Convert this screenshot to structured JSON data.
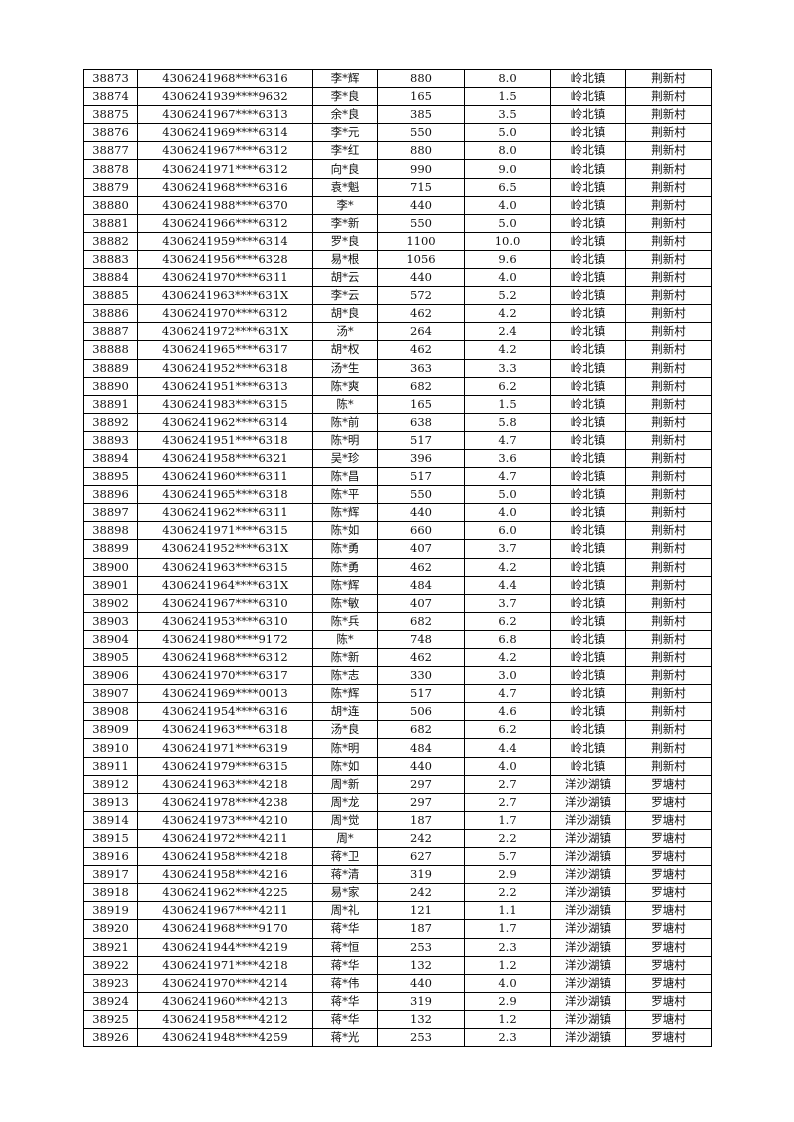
{
  "rows": [
    [
      "38873",
      "4306241968****6316",
      "李*辉",
      "880",
      "8.0",
      "岭北镇",
      "荆新村"
    ],
    [
      "38874",
      "4306241939****9632",
      "李*良",
      "165",
      "1.5",
      "岭北镇",
      "荆新村"
    ],
    [
      "38875",
      "4306241967****6313",
      "余*良",
      "385",
      "3.5",
      "岭北镇",
      "荆新村"
    ],
    [
      "38876",
      "4306241969****6314",
      "李*元",
      "550",
      "5.0",
      "岭北镇",
      "荆新村"
    ],
    [
      "38877",
      "4306241967****6312",
      "李*红",
      "880",
      "8.0",
      "岭北镇",
      "荆新村"
    ],
    [
      "38878",
      "4306241971****6312",
      "向*良",
      "990",
      "9.0",
      "岭北镇",
      "荆新村"
    ],
    [
      "38879",
      "4306241968****6316",
      "袁*魁",
      "715",
      "6.5",
      "岭北镇",
      "荆新村"
    ],
    [
      "38880",
      "4306241988****6370",
      "李*",
      "440",
      "4.0",
      "岭北镇",
      "荆新村"
    ],
    [
      "38881",
      "4306241966****6312",
      "李*新",
      "550",
      "5.0",
      "岭北镇",
      "荆新村"
    ],
    [
      "38882",
      "4306241959****6314",
      "罗*良",
      "1100",
      "10.0",
      "岭北镇",
      "荆新村"
    ],
    [
      "38883",
      "4306241956****6328",
      "易*根",
      "1056",
      "9.6",
      "岭北镇",
      "荆新村"
    ],
    [
      "38884",
      "4306241970****6311",
      "胡*云",
      "440",
      "4.0",
      "岭北镇",
      "荆新村"
    ],
    [
      "38885",
      "4306241963****631X",
      "李*云",
      "572",
      "5.2",
      "岭北镇",
      "荆新村"
    ],
    [
      "38886",
      "4306241970****6312",
      "胡*良",
      "462",
      "4.2",
      "岭北镇",
      "荆新村"
    ],
    [
      "38887",
      "4306241972****631X",
      "汤*",
      "264",
      "2.4",
      "岭北镇",
      "荆新村"
    ],
    [
      "38888",
      "4306241965****6317",
      "胡*权",
      "462",
      "4.2",
      "岭北镇",
      "荆新村"
    ],
    [
      "38889",
      "4306241952****6318",
      "汤*生",
      "363",
      "3.3",
      "岭北镇",
      "荆新村"
    ],
    [
      "38890",
      "4306241951****6313",
      "陈*爽",
      "682",
      "6.2",
      "岭北镇",
      "荆新村"
    ],
    [
      "38891",
      "4306241983****6315",
      "陈*",
      "165",
      "1.5",
      "岭北镇",
      "荆新村"
    ],
    [
      "38892",
      "4306241962****6314",
      "陈*前",
      "638",
      "5.8",
      "岭北镇",
      "荆新村"
    ],
    [
      "38893",
      "4306241951****6318",
      "陈*明",
      "517",
      "4.7",
      "岭北镇",
      "荆新村"
    ],
    [
      "38894",
      "4306241958****6321",
      "吴*珍",
      "396",
      "3.6",
      "岭北镇",
      "荆新村"
    ],
    [
      "38895",
      "4306241960****6311",
      "陈*昌",
      "517",
      "4.7",
      "岭北镇",
      "荆新村"
    ],
    [
      "38896",
      "4306241965****6318",
      "陈*平",
      "550",
      "5.0",
      "岭北镇",
      "荆新村"
    ],
    [
      "38897",
      "4306241962****6311",
      "陈*辉",
      "440",
      "4.0",
      "岭北镇",
      "荆新村"
    ],
    [
      "38898",
      "4306241971****6315",
      "陈*如",
      "660",
      "6.0",
      "岭北镇",
      "荆新村"
    ],
    [
      "38899",
      "4306241952****631X",
      "陈*勇",
      "407",
      "3.7",
      "岭北镇",
      "荆新村"
    ],
    [
      "38900",
      "4306241963****6315",
      "陈*勇",
      "462",
      "4.2",
      "岭北镇",
      "荆新村"
    ],
    [
      "38901",
      "4306241964****631X",
      "陈*辉",
      "484",
      "4.4",
      "岭北镇",
      "荆新村"
    ],
    [
      "38902",
      "4306241967****6310",
      "陈*敏",
      "407",
      "3.7",
      "岭北镇",
      "荆新村"
    ],
    [
      "38903",
      "4306241953****6310",
      "陈*兵",
      "682",
      "6.2",
      "岭北镇",
      "荆新村"
    ],
    [
      "38904",
      "4306241980****9172",
      "陈*",
      "748",
      "6.8",
      "岭北镇",
      "荆新村"
    ],
    [
      "38905",
      "4306241968****6312",
      "陈*新",
      "462",
      "4.2",
      "岭北镇",
      "荆新村"
    ],
    [
      "38906",
      "4306241970****6317",
      "陈*志",
      "330",
      "3.0",
      "岭北镇",
      "荆新村"
    ],
    [
      "38907",
      "4306241969****0013",
      "陈*辉",
      "517",
      "4.7",
      "岭北镇",
      "荆新村"
    ],
    [
      "38908",
      "4306241954****6316",
      "胡*连",
      "506",
      "4.6",
      "岭北镇",
      "荆新村"
    ],
    [
      "38909",
      "4306241963****6318",
      "汤*良",
      "682",
      "6.2",
      "岭北镇",
      "荆新村"
    ],
    [
      "38910",
      "4306241971****6319",
      "陈*明",
      "484",
      "4.4",
      "岭北镇",
      "荆新村"
    ],
    [
      "38911",
      "4306241979****6315",
      "陈*如",
      "440",
      "4.0",
      "岭北镇",
      "荆新村"
    ],
    [
      "38912",
      "4306241963****4218",
      "周*新",
      "297",
      "2.7",
      "洋沙湖镇",
      "罗塘村"
    ],
    [
      "38913",
      "4306241978****4238",
      "周*龙",
      "297",
      "2.7",
      "洋沙湖镇",
      "罗塘村"
    ],
    [
      "38914",
      "4306241973****4210",
      "周*觉",
      "187",
      "1.7",
      "洋沙湖镇",
      "罗塘村"
    ],
    [
      "38915",
      "4306241972****4211",
      "周*",
      "242",
      "2.2",
      "洋沙湖镇",
      "罗塘村"
    ],
    [
      "38916",
      "4306241958****4218",
      "蒋*卫",
      "627",
      "5.7",
      "洋沙湖镇",
      "罗塘村"
    ],
    [
      "38917",
      "4306241958****4216",
      "蒋*清",
      "319",
      "2.9",
      "洋沙湖镇",
      "罗塘村"
    ],
    [
      "38918",
      "4306241962****4225",
      "易*家",
      "242",
      "2.2",
      "洋沙湖镇",
      "罗塘村"
    ],
    [
      "38919",
      "4306241967****4211",
      "周*礼",
      "121",
      "1.1",
      "洋沙湖镇",
      "罗塘村"
    ],
    [
      "38920",
      "4306241968****9170",
      "蒋*华",
      "187",
      "1.7",
      "洋沙湖镇",
      "罗塘村"
    ],
    [
      "38921",
      "4306241944****4219",
      "蒋*恒",
      "253",
      "2.3",
      "洋沙湖镇",
      "罗塘村"
    ],
    [
      "38922",
      "4306241971****4218",
      "蒋*华",
      "132",
      "1.2",
      "洋沙湖镇",
      "罗塘村"
    ],
    [
      "38923",
      "4306241970****4214",
      "蒋*伟",
      "440",
      "4.0",
      "洋沙湖镇",
      "罗塘村"
    ],
    [
      "38924",
      "4306241960****4213",
      "蒋*华",
      "319",
      "2.9",
      "洋沙湖镇",
      "罗塘村"
    ],
    [
      "38925",
      "4306241958****4212",
      "蒋*华",
      "132",
      "1.2",
      "洋沙湖镇",
      "罗塘村"
    ],
    [
      "38926",
      "4306241948****4259",
      "蒋*光",
      "253",
      "2.3",
      "洋沙湖镇",
      "罗塘村"
    ]
  ]
}
